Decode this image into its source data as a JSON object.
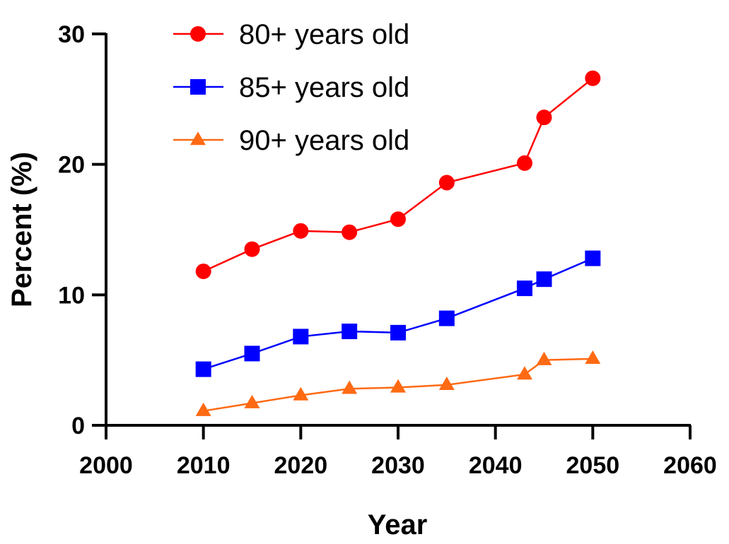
{
  "chart_data": {
    "type": "line",
    "title": "",
    "xlabel": "Year",
    "ylabel": "Percent (%)",
    "xlim": [
      2000,
      2060
    ],
    "ylim": [
      0,
      30
    ],
    "xticks": [
      2000,
      2010,
      2020,
      2030,
      2040,
      2050,
      2060
    ],
    "yticks": [
      0,
      10,
      20,
      30
    ],
    "xtick_labels": [
      "2000",
      "2010",
      "2020",
      "2030",
      "2040",
      "2050",
      "2060"
    ],
    "ytick_labels": [
      "0",
      "10",
      "20",
      "30"
    ],
    "grid": false,
    "legend_position": "top-left",
    "series": [
      {
        "name": "80+ years old",
        "color": "#ff0000",
        "marker": "circle",
        "x": [
          2010,
          2015,
          2020,
          2025,
          2030,
          2035,
          2043,
          2045,
          2050
        ],
        "y": [
          11.8,
          13.5,
          14.9,
          14.8,
          15.8,
          18.6,
          20.1,
          23.6,
          26.6
        ]
      },
      {
        "name": "85+ years old",
        "color": "#0000ff",
        "marker": "square",
        "x": [
          2010,
          2015,
          2020,
          2025,
          2030,
          2035,
          2043,
          2045,
          2050
        ],
        "y": [
          4.3,
          5.5,
          6.8,
          7.2,
          7.1,
          8.2,
          10.5,
          11.2,
          12.8
        ]
      },
      {
        "name": "90+ years old",
        "color": "#ff6a13",
        "marker": "triangle",
        "x": [
          2010,
          2015,
          2020,
          2025,
          2030,
          2035,
          2043,
          2045,
          2050
        ],
        "y": [
          1.1,
          1.7,
          2.3,
          2.8,
          2.9,
          3.1,
          3.9,
          5.0,
          5.1
        ]
      }
    ]
  }
}
